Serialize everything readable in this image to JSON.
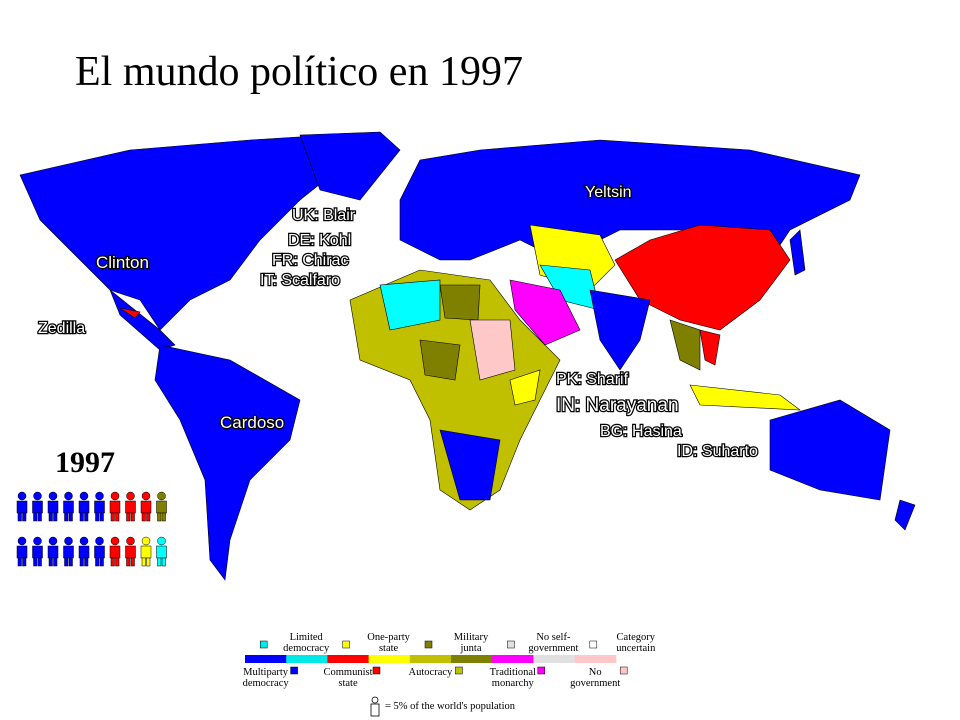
{
  "title": "El mundo político en 1997",
  "map_labels": [
    "Yeltsin",
    "UK: Blair",
    "DE: Kohl",
    "FR: Chirac",
    "IT: Scalfaro",
    "Clinton",
    "Zedilla",
    "Cardoso",
    "PK: Sharif",
    "IN: Narayanan",
    "BG: Hasina",
    "ID: Suharto"
  ],
  "pictogram": {
    "year": "1997",
    "rows": [
      [
        "#0000ff",
        "#0000ff",
        "#0000ff",
        "#0000ff",
        "#0000ff",
        "#0000ff",
        "#ff0000",
        "#ff0000",
        "#ff0000",
        "#808000"
      ],
      [
        "#0000ff",
        "#0000ff",
        "#0000ff",
        "#0000ff",
        "#0000ff",
        "#0000ff",
        "#ff0000",
        "#ff0000",
        "#ffff00",
        "#00ffff"
      ]
    ]
  },
  "legend": {
    "items": [
      {
        "label": [
          "Multiparty",
          "democracy"
        ],
        "color": "#0000ff"
      },
      {
        "label": [
          "Limited",
          "democracy"
        ],
        "color": "#00e8e8"
      },
      {
        "label": [
          "Communist",
          "state"
        ],
        "color": "#ff0000"
      },
      {
        "label": [
          "One-party",
          "state"
        ],
        "color": "#ffff00"
      },
      {
        "label": [
          "Autocracy"
        ],
        "color": "#c0c000"
      },
      {
        "label": [
          "Military",
          "junta"
        ],
        "color": "#808000"
      },
      {
        "label": [
          "Traditional",
          "monarchy"
        ],
        "color": "#ff00ff"
      },
      {
        "label": [
          "No self-",
          "government"
        ],
        "color": "#e0e0e0"
      },
      {
        "label": [
          "No",
          "government"
        ],
        "color": "#ffc8c8"
      },
      {
        "label": [
          "Category",
          "uncertain"
        ]
      }
    ],
    "note": "= 5% of the world's population"
  }
}
